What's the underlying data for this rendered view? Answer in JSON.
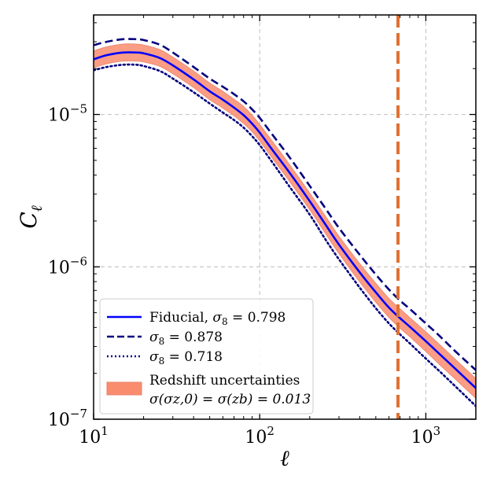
{
  "chart_data": {
    "type": "line",
    "xscale": "log",
    "yscale": "log",
    "xlim": [
      10,
      2000
    ],
    "ylim": [
      1e-07,
      4.5e-05
    ],
    "xlabel": "ℓ",
    "ylabel_main": "C",
    "ylabel_sub": "ℓ",
    "x_ticks": [
      {
        "value": 10,
        "base": "10",
        "exp": "1"
      },
      {
        "value": 100,
        "base": "10",
        "exp": "2"
      },
      {
        "value": 1000,
        "base": "10",
        "exp": "3"
      }
    ],
    "y_ticks": [
      {
        "value": 1e-07,
        "base": "10",
        "exp": "−7"
      },
      {
        "value": 1e-06,
        "base": "10",
        "exp": "−6"
      },
      {
        "value": 1e-05,
        "base": "10",
        "exp": "−5"
      }
    ],
    "grid": true,
    "legend_position": "lower-left",
    "x": [
      10,
      12,
      15,
      18,
      20,
      25,
      30,
      40,
      50,
      60,
      70,
      80,
      90,
      100,
      120,
      150,
      200,
      250,
      300,
      400,
      500,
      600,
      700,
      800,
      1000,
      1200,
      1500,
      2000
    ],
    "series": [
      {
        "name": "fiducial",
        "label_text": "Fiducial, ",
        "label_math": "σ",
        "label_sub": "8",
        "label_value": " = 0.798",
        "color": "#0000ff",
        "style": "solid",
        "values": [
          2.3e-05,
          2.45e-05,
          2.55e-05,
          2.55e-05,
          2.52e-05,
          2.35e-05,
          2.1e-05,
          1.7e-05,
          1.42e-05,
          1.25e-05,
          1.11e-05,
          9.9e-06,
          8.7e-06,
          7.6e-06,
          5.8e-06,
          4.2e-06,
          2.7e-06,
          1.88e-06,
          1.4e-06,
          9.2e-07,
          6.8e-07,
          5.4e-07,
          4.6e-07,
          4.05e-07,
          3.25e-07,
          2.7e-07,
          2.15e-07,
          1.6e-07
        ]
      },
      {
        "name": "sigma8-high",
        "label_math": "σ",
        "label_sub": "8",
        "label_value": " = 0.878",
        "color": "#00007f",
        "style": "dashed",
        "values": [
          2.85e-05,
          3e-05,
          3.12e-05,
          3.12e-05,
          3.08e-05,
          2.87e-05,
          2.55e-05,
          2.05e-05,
          1.72e-05,
          1.52e-05,
          1.36e-05,
          1.22e-05,
          1.08e-05,
          9.5e-06,
          7.3e-06,
          5.3e-06,
          3.4e-06,
          2.4e-06,
          1.8e-06,
          1.2e-06,
          8.9e-07,
          7.1e-07,
          6e-07,
          5.3e-07,
          4.25e-07,
          3.55e-07,
          2.8e-07,
          2.1e-07
        ]
      },
      {
        "name": "sigma8-low",
        "label_math": "σ",
        "label_sub": "8",
        "label_value": " = 0.718",
        "color": "#00007f",
        "style": "dotted",
        "values": [
          1.95e-05,
          2.05e-05,
          2.12e-05,
          2.12e-05,
          2.08e-05,
          1.93e-05,
          1.72e-05,
          1.4e-05,
          1.18e-05,
          1.03e-05,
          9.2e-06,
          8.2e-06,
          7.2e-06,
          6.3e-06,
          4.8e-06,
          3.4e-06,
          2.2e-06,
          1.5e-06,
          1.12e-06,
          7.3e-07,
          5.35e-07,
          4.25e-07,
          3.6e-07,
          3.15e-07,
          2.5e-07,
          2.08e-07,
          1.65e-07,
          1.22e-07
        ]
      }
    ],
    "band": {
      "name": "redshift-uncertainties",
      "label_line1": "Redshift uncertainties",
      "label_line2": "σ(σz,0) = σ(zb) = 0.013",
      "color": "#fa8c6e",
      "edge_color": "#e8826a",
      "upper": [
        2.62e-05,
        2.78e-05,
        2.9e-05,
        2.9e-05,
        2.86e-05,
        2.67e-05,
        2.38e-05,
        1.93e-05,
        1.61e-05,
        1.42e-05,
        1.26e-05,
        1.13e-05,
        9.9e-06,
        8.6e-06,
        6.6e-06,
        4.75e-06,
        3.05e-06,
        2.13e-06,
        1.59e-06,
        1.05e-06,
        7.8e-07,
        6.2e-07,
        5.3e-07,
        4.65e-07,
        3.75e-07,
        3.12e-07,
        2.48e-07,
        1.85e-07
      ],
      "lower": [
        2.02e-05,
        2.15e-05,
        2.24e-05,
        2.24e-05,
        2.21e-05,
        2.07e-05,
        1.85e-05,
        1.5e-05,
        1.25e-05,
        1.1e-05,
        9.8e-06,
        8.7e-06,
        7.7e-06,
        6.7e-06,
        5.1e-06,
        3.68e-06,
        2.37e-06,
        1.64e-06,
        1.22e-06,
        7.95e-07,
        5.85e-07,
        4.65e-07,
        3.95e-07,
        3.48e-07,
        2.78e-07,
        2.3e-07,
        1.84e-07,
        1.37e-07
      ]
    },
    "vline": {
      "x": 680,
      "color": "#e07030",
      "style": "dashed"
    }
  }
}
